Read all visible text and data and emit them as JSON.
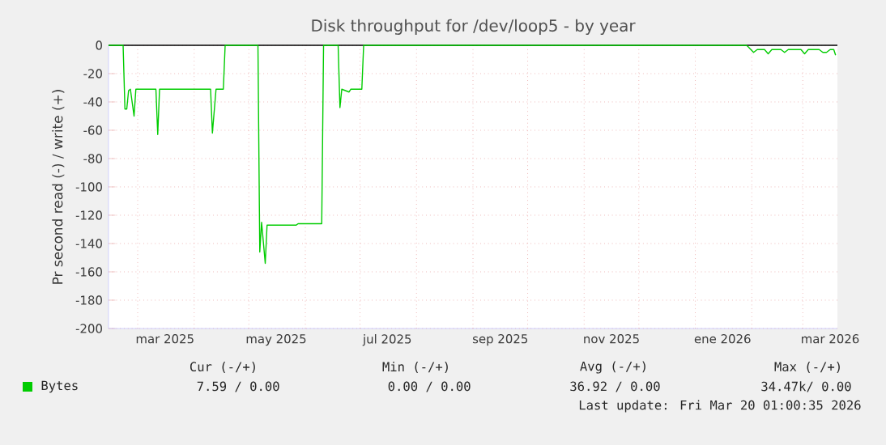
{
  "chart_data": {
    "type": "line",
    "title": "Disk throughput for /dev/loop5 - by year",
    "ylabel": "Pr second read (-) / write (+)",
    "x": [
      "2025-02-13",
      "2025-02-21",
      "2025-02-22",
      "2025-02-23",
      "2025-02-24",
      "2025-02-25",
      "2025-02-27",
      "2025-02-28",
      "2025-03-11",
      "2025-03-12",
      "2025-03-13",
      "2025-04-10",
      "2025-04-11",
      "2025-04-13",
      "2025-04-17",
      "2025-04-18",
      "2025-05-06",
      "2025-05-07",
      "2025-05-08",
      "2025-05-10",
      "2025-05-11",
      "2025-05-27",
      "2025-05-28",
      "2025-06-10",
      "2025-06-11",
      "2025-06-19",
      "2025-06-20",
      "2025-06-21",
      "2025-06-25",
      "2025-06-26",
      "2025-07-02",
      "2025-07-03",
      "2026-01-29",
      "2026-01-30",
      "2026-02-02",
      "2026-02-04",
      "2026-02-08",
      "2026-02-10",
      "2026-02-12",
      "2026-02-17",
      "2026-02-19",
      "2026-02-21",
      "2026-02-28",
      "2026-03-02",
      "2026-03-04",
      "2026-03-10",
      "2026-03-12",
      "2026-03-14",
      "2026-03-16",
      "2026-03-18",
      "2026-03-19"
    ],
    "series": [
      {
        "name": "Bytes",
        "color": "#00cc00",
        "values": [
          0,
          0,
          -45,
          -45,
          -32,
          -31,
          -50,
          -31,
          -31,
          -63,
          -31,
          -31,
          -62,
          -31,
          -31,
          0,
          0,
          -146,
          -125,
          -154,
          -127,
          -127,
          -126,
          -126,
          0,
          0,
          -44,
          -31,
          -33,
          -31,
          -31,
          0,
          0,
          -1,
          -5,
          -3,
          -3,
          -6,
          -3,
          -3,
          -5,
          -3,
          -3,
          -6,
          -3,
          -3,
          -5,
          -5,
          -3,
          -3,
          -7
        ]
      }
    ],
    "xlim": [
      "2025-02-13",
      "2026-03-20"
    ],
    "xticks": [
      {
        "value": "2025-03-01",
        "label": null
      },
      {
        "value": "2025-03-16",
        "label": "mar 2025"
      },
      {
        "value": "2025-04-01",
        "label": null
      },
      {
        "value": "2025-05-01",
        "label": null
      },
      {
        "value": "2025-05-16",
        "label": "may 2025"
      },
      {
        "value": "2025-06-01",
        "label": null
      },
      {
        "value": "2025-07-01",
        "label": null
      },
      {
        "value": "2025-07-16",
        "label": "jul 2025"
      },
      {
        "value": "2025-08-01",
        "label": null
      },
      {
        "value": "2025-09-01",
        "label": null
      },
      {
        "value": "2025-09-16",
        "label": "sep 2025"
      },
      {
        "value": "2025-10-01",
        "label": null
      },
      {
        "value": "2025-11-01",
        "label": null
      },
      {
        "value": "2025-11-16",
        "label": "nov 2025"
      },
      {
        "value": "2025-12-01",
        "label": null
      },
      {
        "value": "2026-01-01",
        "label": null
      },
      {
        "value": "2026-01-16",
        "label": "ene 2026"
      },
      {
        "value": "2026-02-01",
        "label": null
      },
      {
        "value": "2026-03-01",
        "label": null
      },
      {
        "value": "2026-03-16",
        "label": "mar 2026"
      }
    ],
    "ylim": [
      -200,
      0
    ],
    "yticks": [
      -200,
      -180,
      -160,
      -140,
      -120,
      -100,
      -80,
      -60,
      -40,
      -20,
      0
    ],
    "ref_lines": [
      {
        "axis": "y",
        "value": 0,
        "color": "#000000"
      }
    ],
    "grid": true,
    "legend": "bottom",
    "annotations": [
      "Cur (-/+)",
      "Min (-/+)",
      "Avg (-/+)",
      "Max (-/+)",
      "7.59 /   0.00",
      "0.00 /   0.00",
      "36.92 /   0.00",
      "34.47k/   0.00",
      "Last update: Fri Mar 20 01:00:35 2026"
    ]
  }
}
